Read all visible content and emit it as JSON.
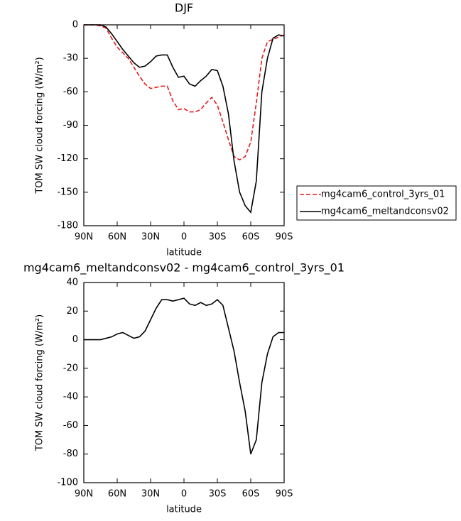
{
  "chart_data": [
    {
      "type": "line",
      "title": "DJF",
      "xlabel": "latitude",
      "ylabel": "TOM SW cloud forcing (W/m²)",
      "x": [
        90,
        85,
        80,
        75,
        70,
        65,
        60,
        55,
        50,
        45,
        40,
        35,
        30,
        25,
        20,
        15,
        10,
        5,
        0,
        -5,
        -10,
        -15,
        -20,
        -25,
        -30,
        -35,
        -40,
        -45,
        -50,
        -55,
        -60,
        -65,
        -70,
        -75,
        -80,
        -85,
        -90
      ],
      "series": [
        {
          "name": "mg4cam6_control_3yrs_01",
          "color": "#e41a1c",
          "dash": true,
          "values": [
            0,
            0,
            0,
            -1,
            -3,
            -12,
            -20,
            -25,
            -30,
            -38,
            -46,
            -53,
            -57,
            -56,
            -55,
            -55,
            -68,
            -76,
            -75,
            -78,
            -78,
            -76,
            -70,
            -65,
            -72,
            -87,
            -103,
            -118,
            -121,
            -118,
            -105,
            -70,
            -30,
            -15,
            -13,
            -11,
            -9
          ]
        },
        {
          "name": "mg4cam6_meltandconsv02",
          "color": "#000000",
          "dash": false,
          "values": [
            0,
            0,
            0,
            0,
            -2,
            -8,
            -15,
            -22,
            -28,
            -34,
            -38,
            -37,
            -33,
            -28,
            -27,
            -27,
            -38,
            -47,
            -46,
            -53,
            -55,
            -50,
            -46,
            -40,
            -41,
            -55,
            -80,
            -122,
            -150,
            -162,
            -168,
            -140,
            -60,
            -30,
            -12,
            -9,
            -10
          ]
        }
      ],
      "xlim": [
        90,
        -90
      ],
      "xticks": [
        {
          "value": 90,
          "label": "90N"
        },
        {
          "value": 60,
          "label": "60N"
        },
        {
          "value": 30,
          "label": "30N"
        },
        0,
        {
          "value": -30,
          "label": "30S"
        },
        {
          "value": -60,
          "label": "60S"
        },
        {
          "value": -90,
          "label": "90S"
        }
      ],
      "ylim": [
        -180,
        0
      ],
      "yticks": [
        -180,
        -150,
        -120,
        -90,
        -60,
        -30,
        0
      ]
    },
    {
      "type": "line",
      "title": "mg4cam6_meltandconsv02 - mg4cam6_control_3yrs_01",
      "xlabel": "latitude",
      "ylabel": "TOM SW cloud forcing (W/m²)",
      "x": [
        90,
        85,
        80,
        75,
        70,
        65,
        60,
        55,
        50,
        45,
        40,
        35,
        30,
        25,
        20,
        15,
        10,
        5,
        0,
        -5,
        -10,
        -15,
        -20,
        -25,
        -30,
        -35,
        -40,
        -45,
        -50,
        -55,
        -60,
        -65,
        -70,
        -75,
        -80,
        -85,
        -90
      ],
      "series": [
        {
          "color": "#000000",
          "dash": false,
          "values": [
            0,
            0,
            0,
            0,
            1,
            2,
            4,
            5,
            3,
            1,
            2,
            6,
            14,
            22,
            28,
            28,
            27,
            28,
            29,
            25,
            24,
            26,
            24,
            25,
            28,
            24,
            8,
            -8,
            -30,
            -50,
            -80,
            -70,
            -30,
            -10,
            2,
            5,
            5
          ]
        }
      ],
      "xlim": [
        90,
        -90
      ],
      "xticks": [
        {
          "value": 90,
          "label": "90N"
        },
        {
          "value": 60,
          "label": "60N"
        },
        {
          "value": 30,
          "label": "30N"
        },
        0,
        {
          "value": -30,
          "label": "30S"
        },
        {
          "value": -60,
          "label": "60S"
        },
        {
          "value": -90,
          "label": "90S"
        }
      ],
      "ylim": [
        -100,
        40
      ],
      "yticks": [
        -100,
        -80,
        -60,
        -40,
        -20,
        0,
        20,
        40
      ]
    }
  ]
}
